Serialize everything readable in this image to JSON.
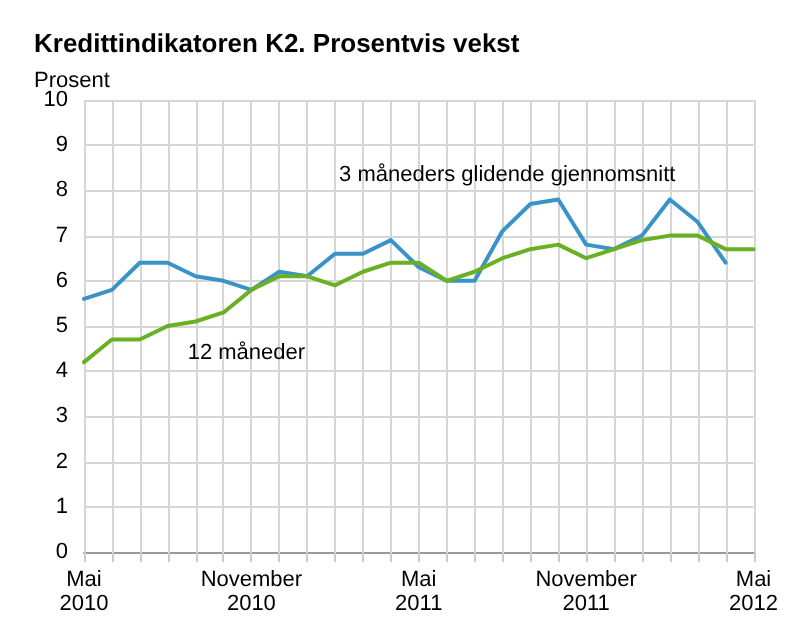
{
  "chart_data": {
    "type": "line",
    "title": "Kredittindikatoren K2. Prosentvis vekst",
    "ylabel": "Prosent",
    "categories": [
      "Mai 2010",
      null,
      null,
      null,
      null,
      null,
      "November 2010",
      null,
      null,
      null,
      null,
      null,
      "Mai 2011",
      null,
      null,
      null,
      null,
      null,
      "November 2011",
      null,
      null,
      null,
      null,
      null,
      "Mai 2012"
    ],
    "series": [
      {
        "name": "3 måneders glidende gjennomsnitt",
        "color": "#3a93c8",
        "values": [
          5.6,
          5.8,
          6.4,
          6.4,
          6.1,
          6.0,
          5.8,
          6.2,
          6.1,
          6.6,
          6.6,
          6.9,
          6.3,
          6.0,
          6.0,
          7.1,
          7.7,
          7.8,
          6.8,
          6.7,
          7.0,
          7.8,
          7.3,
          6.4,
          null
        ]
      },
      {
        "name": "12 måneder",
        "color": "#6ab023",
        "values": [
          4.2,
          4.7,
          4.7,
          5.0,
          5.1,
          5.3,
          5.8,
          6.1,
          6.1,
          5.9,
          6.2,
          6.4,
          6.4,
          6.0,
          6.2,
          6.5,
          6.7,
          6.8,
          6.5,
          6.7,
          6.9,
          7.0,
          7.0,
          6.7,
          6.7
        ]
      }
    ],
    "ylim": [
      0,
      10
    ],
    "yticks": [
      0,
      1,
      2,
      3,
      4,
      5,
      6,
      7,
      8,
      9,
      10
    ],
    "grid": true,
    "legend": false,
    "marker": "none",
    "line_style": "solid"
  }
}
